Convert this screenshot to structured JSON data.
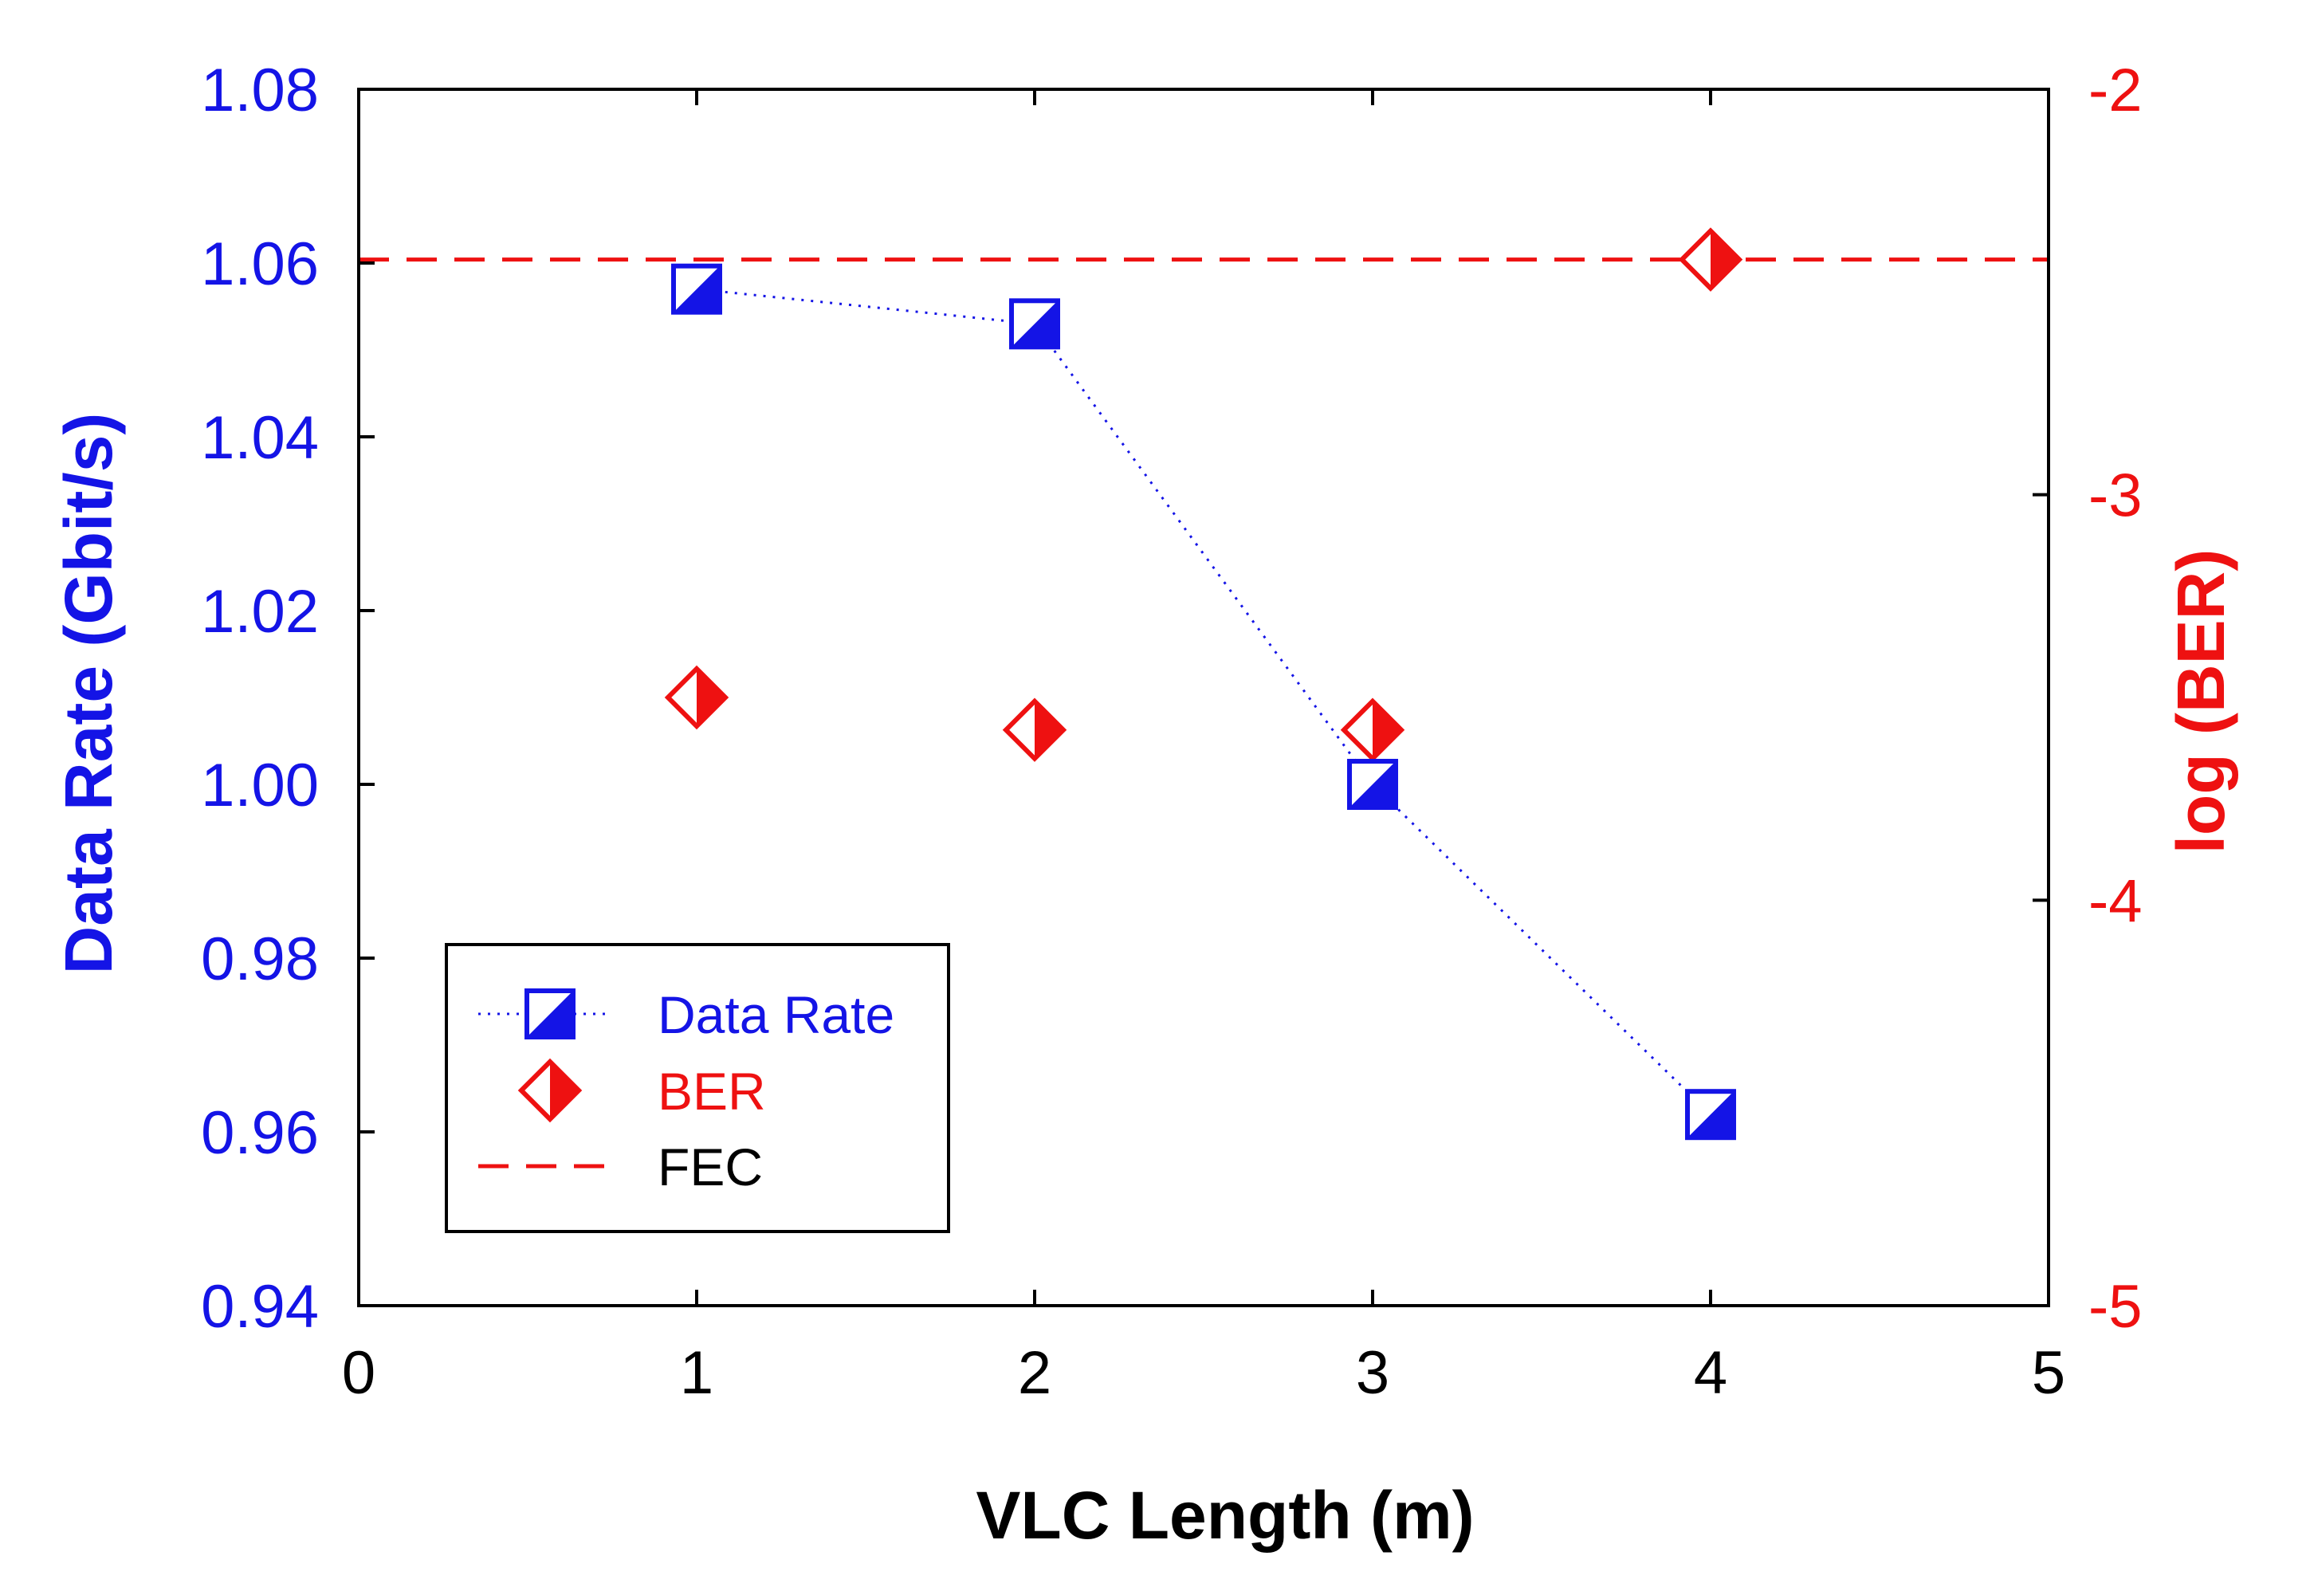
{
  "chart_data": {
    "type": "scatter",
    "title": "",
    "xlabel": "VLC Length (m)",
    "ylabel_left": "Data Rate (Gbit/s)",
    "ylabel_right": "log (BER)",
    "xlim": [
      0,
      5
    ],
    "ylim_left": [
      0.94,
      1.08
    ],
    "ylim_right": [
      -5,
      -2
    ],
    "x_ticks": [
      "0",
      "1",
      "2",
      "3",
      "4",
      "5"
    ],
    "y_ticks_left": [
      "0.94",
      "0.96",
      "0.98",
      "1.00",
      "1.02",
      "1.04",
      "1.06",
      "1.08"
    ],
    "y_ticks_right": [
      "-5",
      "-4",
      "-3",
      "-2"
    ],
    "grid": false,
    "legend_position": "bottom-left",
    "series": [
      {
        "name": "Data Rate",
        "axis": "left",
        "marker": "half-filled-square",
        "line": "dotted",
        "color": "#1414e6",
        "x": [
          1,
          2,
          3,
          4
        ],
        "y": [
          1.057,
          1.053,
          1.0,
          0.962
        ]
      },
      {
        "name": "BER",
        "axis": "right",
        "marker": "half-filled-diamond",
        "line": "none",
        "color": "#ee1111",
        "x": [
          1,
          2,
          3,
          4
        ],
        "y": [
          -3.5,
          -3.58,
          -3.58,
          -2.42
        ]
      },
      {
        "name": "FEC",
        "axis": "right",
        "line": "dashed",
        "color": "#ee1111",
        "y": -2.42
      }
    ]
  }
}
